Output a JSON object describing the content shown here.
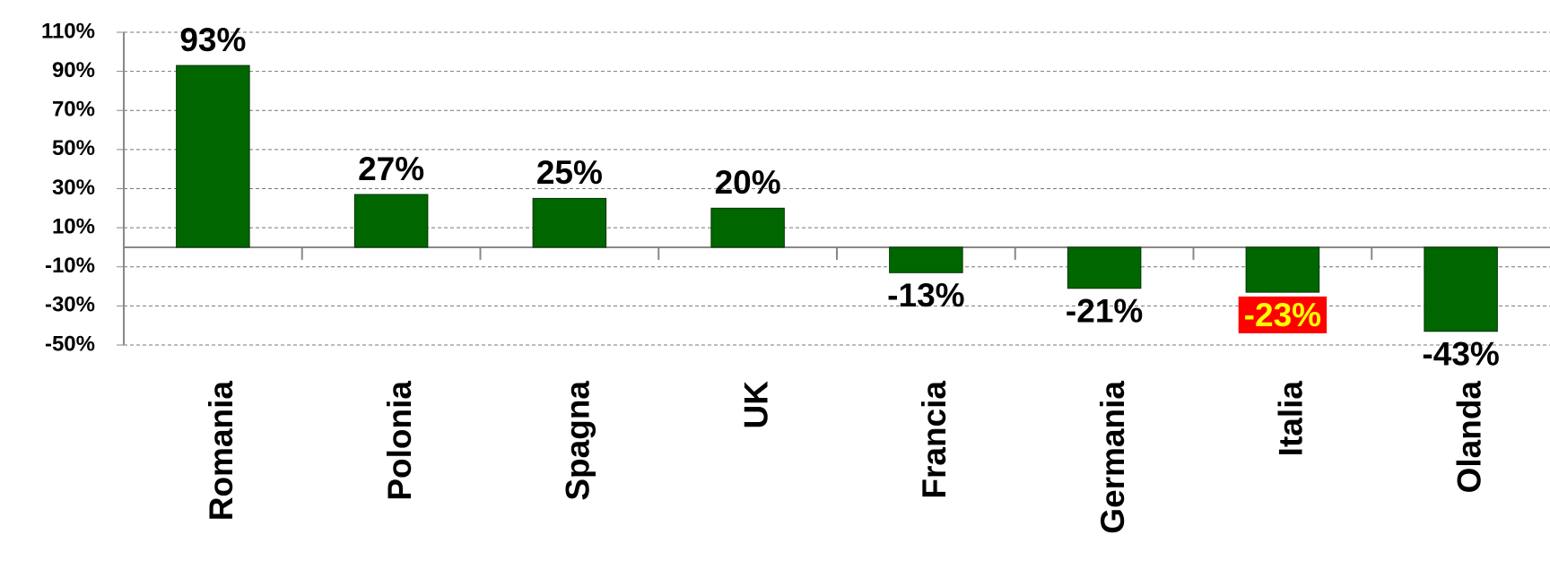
{
  "chart_data": {
    "type": "bar",
    "categories": [
      "Romania",
      "Polonia",
      "Spagna",
      "UK",
      "Francia",
      "Germania",
      "Italia",
      "Olanda"
    ],
    "values": [
      93,
      27,
      25,
      20,
      -13,
      -21,
      -23,
      -43
    ],
    "value_labels": [
      "93%",
      "27%",
      "25%",
      "20%",
      "-13%",
      "-21%",
      "-23%",
      "-43%"
    ],
    "color": "#006600",
    "ylim": [
      -50,
      110
    ],
    "yticks": [
      {
        "value": -50,
        "label": "-50%"
      },
      {
        "value": -30,
        "label": "-30%"
      },
      {
        "value": -10,
        "label": "-10%"
      },
      {
        "value": 10,
        "label": "10%"
      },
      {
        "value": 30,
        "label": "30%"
      },
      {
        "value": 50,
        "label": "50%"
      },
      {
        "value": 70,
        "label": "70%"
      },
      {
        "value": 90,
        "label": "90%"
      },
      {
        "value": 110,
        "label": "110%"
      }
    ],
    "grid": true,
    "value_label_highlight": {
      "index": 6,
      "background": "#ff0000",
      "color": "#ffff00"
    }
  }
}
